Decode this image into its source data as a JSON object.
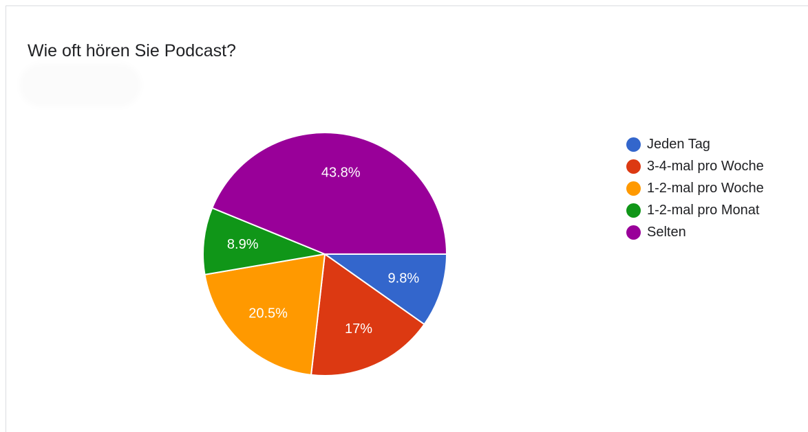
{
  "chart_data": {
    "type": "pie",
    "title": "Wie oft hören Sie Podcast?",
    "legend_position": "right",
    "start_angle_deg": 90,
    "slices": [
      {
        "label": "Jeden Tag",
        "value": 9.8,
        "display": "9.8%",
        "color": "#3366cc"
      },
      {
        "label": "3-4-mal pro Woche",
        "value": 17.0,
        "display": "17%",
        "color": "#dc3912"
      },
      {
        "label": "1-2-mal pro Woche",
        "value": 20.5,
        "display": "20.5%",
        "color": "#ff9900"
      },
      {
        "label": "1-2-mal pro Monat",
        "value": 8.9,
        "display": "8.9%",
        "color": "#109618"
      },
      {
        "label": "Selten",
        "value": 43.8,
        "display": "43.8%",
        "color": "#990099"
      }
    ]
  }
}
